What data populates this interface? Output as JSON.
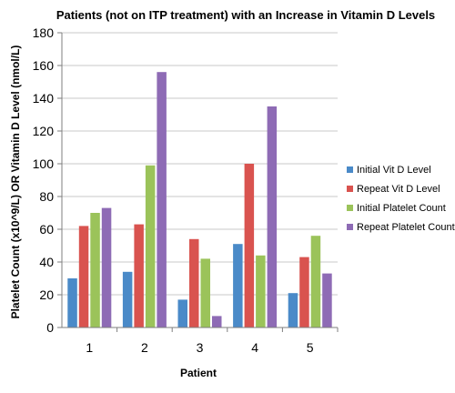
{
  "chart_data": {
    "type": "bar",
    "title": "Patients (not on ITP treatment) with an Increase in Vitamin D Levels",
    "xlabel": "Patient",
    "ylabel": "Platelet Count (x10^9/L) OR Vitamin D Level (nmol/L)",
    "categories": [
      "1",
      "2",
      "3",
      "4",
      "5"
    ],
    "ylim": [
      0,
      180
    ],
    "yticks": [
      0,
      20,
      40,
      60,
      80,
      100,
      120,
      140,
      160,
      180
    ],
    "grid": true,
    "legend_position": "right",
    "series": [
      {
        "name": "Initial Vit D Level",
        "color": "#4a8ac8",
        "values": [
          30,
          34,
          17,
          51,
          21
        ]
      },
      {
        "name": "Repeat Vit D Level",
        "color": "#d9534f",
        "values": [
          62,
          63,
          54,
          100,
          43
        ]
      },
      {
        "name": "Initial Platelet Count",
        "color": "#9bc35a",
        "values": [
          70,
          99,
          42,
          44,
          56
        ]
      },
      {
        "name": "Repeat Platelet Count",
        "color": "#8e6bb5",
        "values": [
          73,
          156,
          7,
          135,
          33
        ]
      }
    ]
  }
}
